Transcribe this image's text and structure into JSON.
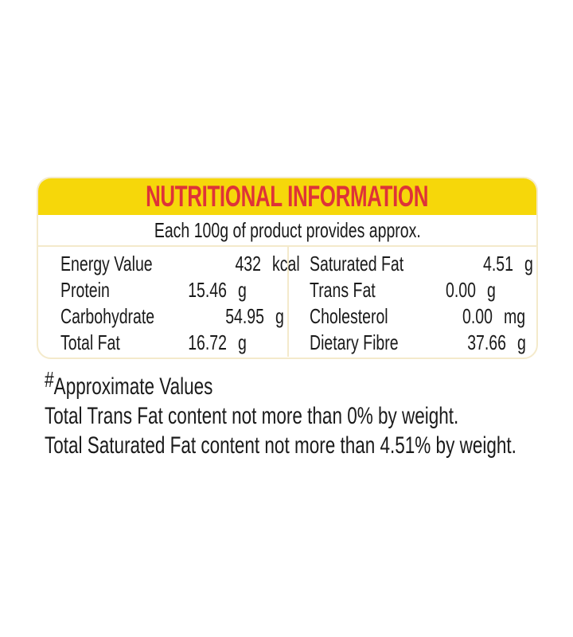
{
  "theme": {
    "yellow": "#F6D70A",
    "red": "#DE3338",
    "cream": "#F4EACB",
    "ink": "#1A1A1A",
    "paper": "#FFFFFF"
  },
  "label": {
    "title": "NUTRITIONAL INFORMATION",
    "subtitle": "Each 100g of product provides approx.",
    "nutrients": {
      "left": [
        {
          "name": "Energy Value",
          "value": "432",
          "unit": "kcal"
        },
        {
          "name": "Protein",
          "value": "15.46",
          "unit": "g"
        },
        {
          "name": "Carbohydrate",
          "value": "54.95",
          "unit": "g"
        },
        {
          "name": "Total Fat",
          "value": "16.72",
          "unit": "g"
        }
      ],
      "right": [
        {
          "name": "Saturated Fat",
          "value": "4.51",
          "unit": "g"
        },
        {
          "name": "Trans Fat",
          "value": "0.00",
          "unit": "g"
        },
        {
          "name": "Cholesterol",
          "value": "0.00",
          "unit": "mg"
        },
        {
          "name": "Dietary Fibre",
          "value": "37.66",
          "unit": "g"
        }
      ]
    }
  },
  "footnotes": {
    "marker": "#",
    "approximate": "Approximate Values",
    "trans_fat": "Total Trans Fat content not more than 0% by weight.",
    "saturated_fat": "Total Saturated Fat content not more than 4.51% by weight."
  }
}
